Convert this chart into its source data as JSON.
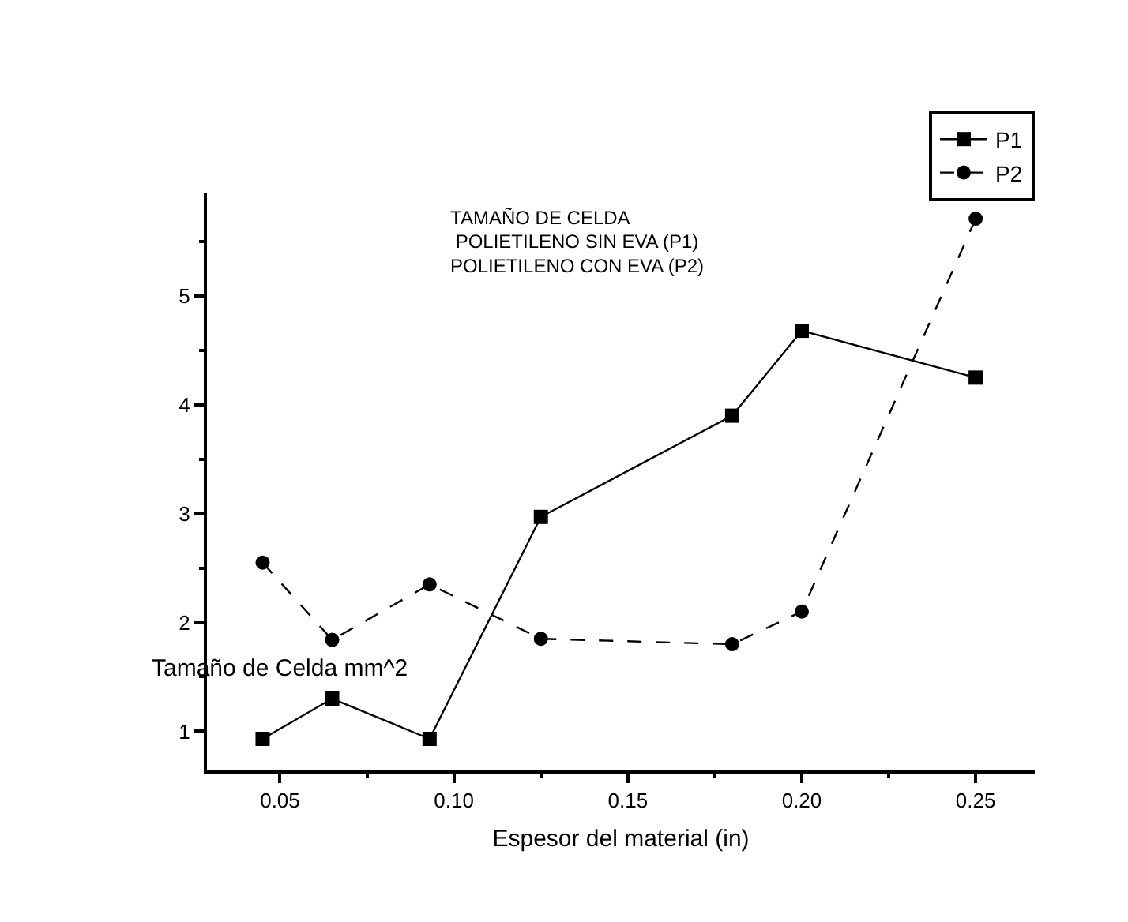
{
  "chart_data": {
    "type": "line",
    "title": "TAMAÑO DE CELDA",
    "subtitle": "POLIETILENO SIN EVA (P1)\nPOLIETILENO CON EVA (P2)",
    "xlabel": "Espesor del material (in)",
    "ylabel": "Tamaño de Celda mm^2",
    "x": [
      0.045,
      0.065,
      0.093,
      0.125,
      0.18,
      0.2,
      0.25
    ],
    "series": [
      {
        "name": "P1",
        "color": "#000000",
        "marker": "square",
        "line_style": "solid",
        "values": [
          0.93,
          1.3,
          0.93,
          2.97,
          3.9,
          4.68,
          4.25
        ]
      },
      {
        "name": "P2",
        "color": "#000000",
        "marker": "circle",
        "line_style": "dashed",
        "values": [
          2.55,
          1.84,
          2.35,
          1.85,
          1.8,
          2.1,
          5.71
        ]
      }
    ],
    "xlim": [
      0.029,
      0.267
    ],
    "xticks": [
      {
        "value": 0.05,
        "label": "0.05"
      },
      {
        "value": 0.1,
        "label": "0.10"
      },
      {
        "value": 0.15,
        "label": "0.15"
      },
      {
        "value": 0.2,
        "label": "0.20"
      },
      {
        "value": 0.25,
        "label": "0.25"
      }
    ],
    "ylim": [
      0.64,
      5.95
    ],
    "yticks": [
      1,
      2,
      3,
      4,
      5
    ],
    "grid": false,
    "legend": "top right"
  }
}
